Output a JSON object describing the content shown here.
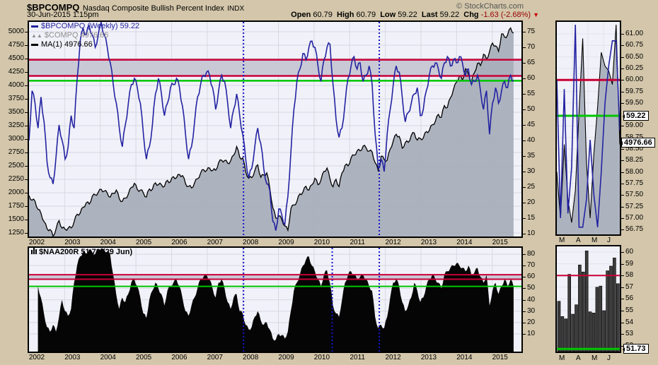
{
  "header": {
    "symbol": "$BPCOMPQ",
    "title": "Nasdaq Composite Bullish Percent Index",
    "exchange": "INDX",
    "copyright": "© StockCharts.com",
    "datetime": "30-Jun-2015 1:15pm",
    "quote": {
      "open_label": "Open",
      "open": "60.79",
      "high_label": "High",
      "high": "60.79",
      "low_label": "Low",
      "low": "59.22",
      "last_label": "Last",
      "last": "59.22",
      "chg_label": "Chg",
      "chg": "-1.63 (-2.68%)"
    }
  },
  "legend_main": [
    {
      "label": "$BPCOMPQ (Weekly) 59.22",
      "color": "#2424a0"
    },
    {
      "label": "$COMPQ 4976.66",
      "color": "#8f8f8f"
    },
    {
      "label": "MA(1) 4976.66",
      "color": "#000000"
    }
  ],
  "legend_lower": {
    "label": "$NAA200R 51.73 (29 Jun)"
  },
  "colors": {
    "background": "#d3c6aa",
    "plot_bg": "#f1f1f9",
    "grid": "#d8d8e2",
    "bp_line": "#2323a2",
    "compq_area": "#a7aeb9",
    "compq_outline": "#000000",
    "red_line": "#c80036",
    "green_line": "#00c600",
    "band_fill": "#c9c9d6",
    "dotted_line": "#1414cc",
    "naa_fill": "#050505",
    "mini_bar_fill": "#3d3d3d"
  },
  "chart_data": {
    "type": "line",
    "main_panel": {
      "x_start": 2002.0,
      "x_end": 2015.6,
      "years": [
        "2002",
        "2003",
        "2004",
        "2005",
        "2006",
        "2007",
        "2008",
        "2009",
        "2010",
        "2011",
        "2012",
        "2013",
        "2014",
        "2015"
      ],
      "left_ticks": [
        5000,
        4750,
        4500,
        4250,
        4000,
        3750,
        3500,
        3250,
        3000,
        2750,
        2500,
        2250,
        2000,
        1750,
        1500,
        1250
      ],
      "right_ticks": [
        75,
        70,
        65,
        60,
        55,
        50,
        45,
        40,
        35,
        30,
        25,
        20,
        15,
        10
      ],
      "left_axis_range": [
        1184,
        5184
      ],
      "right_axis_range": [
        9,
        78.2
      ],
      "red_lines": [
        66,
        60.79
      ],
      "band": [
        60.79,
        66
      ],
      "green_line": 59.22,
      "dotted_x": [
        2008.02,
        2011.83
      ],
      "bp_values": [
        40,
        56,
        52,
        44,
        54,
        46,
        33,
        28,
        26,
        35,
        45,
        40,
        34,
        38,
        48,
        44,
        60,
        72,
        76,
        74,
        77,
        74,
        70,
        74,
        78,
        74,
        70,
        65,
        58,
        52,
        44,
        38,
        45,
        52,
        58,
        60,
        57,
        52,
        42,
        34,
        38,
        45,
        55,
        60,
        55,
        48,
        52,
        57,
        58,
        60,
        57,
        51,
        42,
        34,
        38,
        46,
        54,
        58,
        61,
        62,
        61,
        57,
        50,
        56,
        61,
        59,
        52,
        44,
        50,
        55,
        48,
        42,
        34,
        28,
        31,
        38,
        44,
        39,
        31,
        26,
        24,
        14,
        11,
        18,
        16,
        13,
        22,
        36,
        50,
        59,
        63,
        68,
        66,
        70,
        72,
        70,
        64,
        59,
        66,
        70,
        71,
        58,
        47,
        41,
        44,
        52,
        60,
        64,
        67,
        63,
        65,
        59,
        61,
        64,
        58,
        42,
        31,
        34,
        30,
        42,
        50,
        58,
        64,
        62,
        54,
        46,
        49,
        52,
        55,
        57,
        48,
        50,
        56,
        61,
        64,
        65,
        63,
        60,
        65,
        67,
        64,
        66,
        65,
        67,
        65,
        61,
        63,
        58,
        59,
        61,
        56,
        50,
        56,
        42,
        52,
        57,
        52,
        56,
        59,
        57,
        61,
        59.22
      ],
      "compq_values": [
        1950,
        1860,
        1845,
        1690,
        1615,
        1460,
        1330,
        1315,
        1190,
        1330,
        1480,
        1340,
        1320,
        1340,
        1345,
        1460,
        1600,
        1620,
        1730,
        1810,
        1790,
        1930,
        1960,
        2005,
        2065,
        2030,
        1995,
        1920,
        1990,
        2050,
        1890,
        1840,
        1900,
        1975,
        2100,
        2175,
        2060,
        2050,
        1995,
        1920,
        2070,
        2065,
        2185,
        2150,
        2150,
        2120,
        2230,
        2205,
        2300,
        2280,
        2340,
        2320,
        2170,
        2120,
        2090,
        2185,
        2260,
        2365,
        2430,
        2415,
        2460,
        2415,
        2420,
        2560,
        2605,
        2600,
        2550,
        2595,
        2700,
        2860,
        2660,
        2650,
        2390,
        2270,
        2280,
        2410,
        2520,
        2290,
        2330,
        2370,
        2090,
        1720,
        1530,
        1570,
        1500,
        1380,
        1300,
        1700,
        1775,
        1835,
        1980,
        2010,
        2120,
        2050,
        2150,
        2270,
        2150,
        2240,
        2400,
        2460,
        2260,
        2110,
        2250,
        2115,
        2370,
        2510,
        2500,
        2650,
        2700,
        2780,
        2780,
        2870,
        2835,
        2775,
        2760,
        2560,
        2415,
        2680,
        2620,
        2605,
        2815,
        2965,
        3090,
        3050,
        2830,
        2935,
        2940,
        3070,
        3115,
        2980,
        3010,
        3020,
        3140,
        3160,
        3270,
        3330,
        3460,
        3405,
        3625,
        3590,
        3770,
        3920,
        4060,
        4180,
        4100,
        4310,
        4200,
        4080,
        4240,
        4410,
        4370,
        4580,
        4490,
        4630,
        4790,
        4736,
        4635,
        4960,
        4900,
        4940,
        5070,
        4976.66
      ]
    },
    "lower_panel": {
      "x_start": 2002.25,
      "x_end": 2015.6,
      "years": [
        "2002",
        "2003",
        "2004",
        "2005",
        "2006",
        "2007",
        "2008",
        "2009",
        "2010",
        "2011",
        "2012",
        "2013",
        "2014",
        "2015"
      ],
      "right_ticks": [
        80,
        70,
        60,
        50,
        40,
        30,
        20,
        10
      ],
      "axis_range": [
        -5,
        86
      ],
      "red_lines": [
        62,
        58
      ],
      "band": [
        58,
        62
      ],
      "green_line": 51.73,
      "dotted_x": [
        2008.02,
        2010.51,
        2011.83
      ],
      "naa_values": [
        52,
        42,
        28,
        16,
        12,
        18,
        12,
        25,
        40,
        30,
        26,
        32,
        55,
        70,
        78,
        82,
        80,
        84,
        82,
        80,
        84,
        85,
        84,
        82,
        80,
        62,
        45,
        32,
        42,
        38,
        45,
        55,
        58,
        52,
        42,
        28,
        24,
        40,
        48,
        55,
        50,
        45,
        35,
        48,
        52,
        55,
        58,
        52,
        42,
        30,
        26,
        35,
        42,
        50,
        58,
        60,
        62,
        58,
        50,
        42,
        55,
        58,
        50,
        38,
        32,
        42,
        45,
        30,
        28,
        18,
        14,
        16,
        25,
        30,
        22,
        18,
        20,
        14,
        6,
        5,
        10,
        9,
        6,
        12,
        30,
        48,
        55,
        62,
        70,
        75,
        78,
        70,
        65,
        58,
        52,
        62,
        66,
        55,
        35,
        28,
        25,
        40,
        55,
        62,
        65,
        62,
        58,
        60,
        62,
        58,
        52,
        48,
        25,
        15,
        18,
        15,
        25,
        42,
        55,
        58,
        52,
        38,
        30,
        35,
        42,
        55,
        48,
        38,
        42,
        52,
        58,
        62,
        58,
        55,
        50,
        62,
        65,
        68,
        70,
        72,
        70,
        68,
        65,
        70,
        62,
        64,
        68,
        60,
        55,
        62,
        35,
        48,
        55,
        45,
        52,
        58,
        52,
        58,
        51.73
      ]
    },
    "mini_top": {
      "y_ticks": [
        "61.00",
        "60.75",
        "60.50",
        "60.25",
        "60.00",
        "59.75",
        "59.50",
        "59.00",
        "58.75",
        "58.50",
        "58.25",
        "58.00",
        "57.75",
        "57.50",
        "57.25",
        "57.00",
        "56.75"
      ],
      "x_labels": [
        "M",
        "A",
        "M",
        "J"
      ],
      "axis_range": [
        56.63,
        61.26
      ],
      "red_line": 60.0,
      "green_line": 59.22,
      "green_label": "59.22",
      "price_label": "4976.66",
      "bp_values": [
        60.0,
        57.0,
        59.8,
        57.1,
        58.1,
        61.2,
        56.8,
        56.8,
        57.4,
        58.7,
        57.5,
        56.8,
        58.0,
        59.5,
        60.3,
        60.85,
        60.85,
        58.9
      ],
      "compq_values": [
        58.0,
        57.0,
        58.6,
        57.4,
        56.9,
        57.6,
        59.3,
        60.9,
        58.2,
        57.0,
        58.4,
        59.4,
        60.6,
        60.3,
        60.2,
        59.9,
        61.2,
        58.6
      ]
    },
    "mini_bottom": {
      "y_ticks": [
        "60",
        "59",
        "58",
        "57",
        "56",
        "55",
        "54",
        "53",
        "52"
      ],
      "x_labels": [
        "M",
        "A",
        "M",
        "J"
      ],
      "axis_range": [
        51.4,
        60.5
      ],
      "red_line": 58,
      "green_line": 51.73,
      "green_label": "51.73",
      "bar_values": [
        55.8,
        54.5,
        54.3,
        58.1,
        54.7,
        55.5,
        58.9,
        58.3,
        60.1,
        54.9,
        54.8,
        57.0,
        57.1,
        55.0,
        58.4,
        58.8,
        59.5,
        57.3
      ]
    }
  }
}
